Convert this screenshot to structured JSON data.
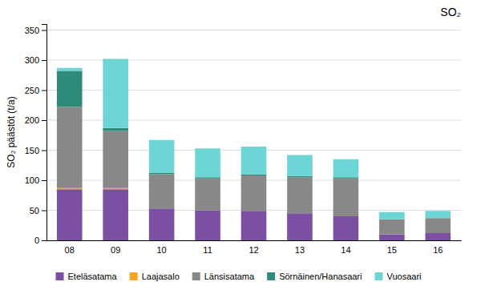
{
  "chart_data": {
    "type": "bar",
    "stacked": true,
    "title": "SO₂",
    "ylabel": "SO₂ päästöt (t/a)",
    "categories": [
      "08",
      "09",
      "10",
      "11",
      "12",
      "13",
      "14",
      "15",
      "16"
    ],
    "series": [
      {
        "name": "Eteläsatama",
        "color": "#7B4FA1",
        "values": [
          85,
          85,
          53,
          50,
          48,
          45,
          40,
          10,
          12
        ]
      },
      {
        "name": "Laajasalo",
        "color": "#F5A623",
        "values": [
          2,
          2,
          0,
          0,
          0,
          0,
          0,
          0,
          0
        ]
      },
      {
        "name": "Länsisatama",
        "color": "#888888",
        "values": [
          135,
          95,
          57,
          53,
          60,
          60,
          63,
          25,
          25
        ]
      },
      {
        "name": "Sörnäinen/Hanasaari",
        "color": "#2E8B7A",
        "values": [
          60,
          5,
          2,
          2,
          2,
          2,
          2,
          0,
          0
        ]
      },
      {
        "name": "Vuosaari",
        "color": "#6DD5D5",
        "values": [
          5,
          115,
          55,
          48,
          46,
          35,
          30,
          12,
          12
        ]
      }
    ],
    "ylim": [
      0,
      360
    ],
    "yticks": [
      0,
      50,
      100,
      150,
      200,
      250,
      300,
      350
    ],
    "grid": true,
    "legend": "bottom"
  }
}
